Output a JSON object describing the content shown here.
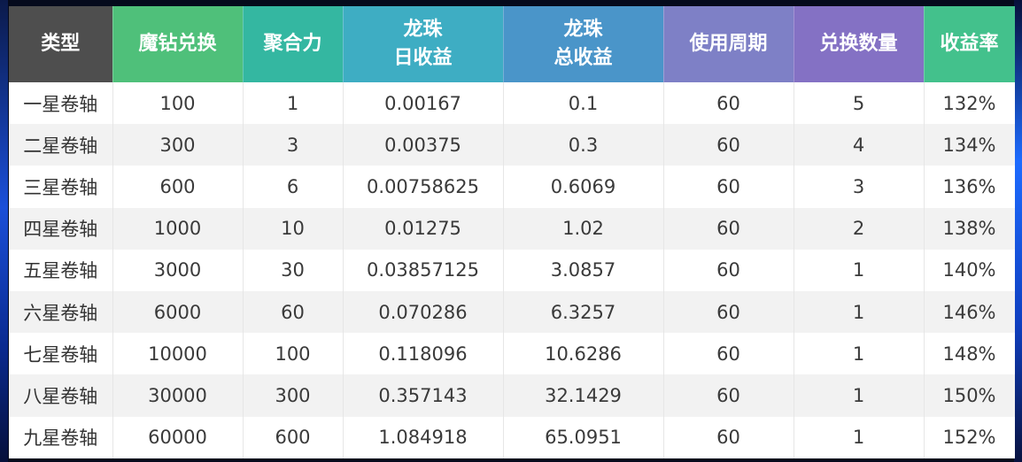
{
  "colors": {
    "header_type": "#4e4e4e",
    "header_mozuan": "#4fc07a",
    "header_juhe": "#34b7a1",
    "header_daily": "#3eadc3",
    "header_total": "#4a95c9",
    "header_period": "#7e80c6",
    "header_count": "#8471c4",
    "header_rate": "#43c18c"
  },
  "headers": [
    {
      "line1": "类型",
      "line2": ""
    },
    {
      "line1": "魔钻兑换",
      "line2": ""
    },
    {
      "line1": "聚合力",
      "line2": ""
    },
    {
      "line1": "龙珠",
      "line2": "日收益"
    },
    {
      "line1": "龙珠",
      "line2": "总收益"
    },
    {
      "line1": "使用周期",
      "line2": ""
    },
    {
      "line1": "兑换数量",
      "line2": ""
    },
    {
      "line1": "收益率",
      "line2": ""
    }
  ],
  "rows": [
    [
      "一星卷轴",
      "100",
      "1",
      "0.00167",
      "0.1",
      "60",
      "5",
      "132%"
    ],
    [
      "二星卷轴",
      "300",
      "3",
      "0.00375",
      "0.3",
      "60",
      "4",
      "134%"
    ],
    [
      "三星卷轴",
      "600",
      "6",
      "0.00758625",
      "0.6069",
      "60",
      "3",
      "136%"
    ],
    [
      "四星卷轴",
      "1000",
      "10",
      "0.01275",
      "1.02",
      "60",
      "2",
      "138%"
    ],
    [
      "五星卷轴",
      "3000",
      "30",
      "0.03857125",
      "3.0857",
      "60",
      "1",
      "140%"
    ],
    [
      "六星卷轴",
      "6000",
      "60",
      "0.070286",
      "6.3257",
      "60",
      "1",
      "146%"
    ],
    [
      "七星卷轴",
      "10000",
      "100",
      "0.118096",
      "10.6286",
      "60",
      "1",
      "148%"
    ],
    [
      "八星卷轴",
      "30000",
      "300",
      "0.357143",
      "32.1429",
      "60",
      "1",
      "150%"
    ],
    [
      "九星卷轴",
      "60000",
      "600",
      "1.084918",
      "65.0951",
      "60",
      "1",
      "152%"
    ]
  ]
}
